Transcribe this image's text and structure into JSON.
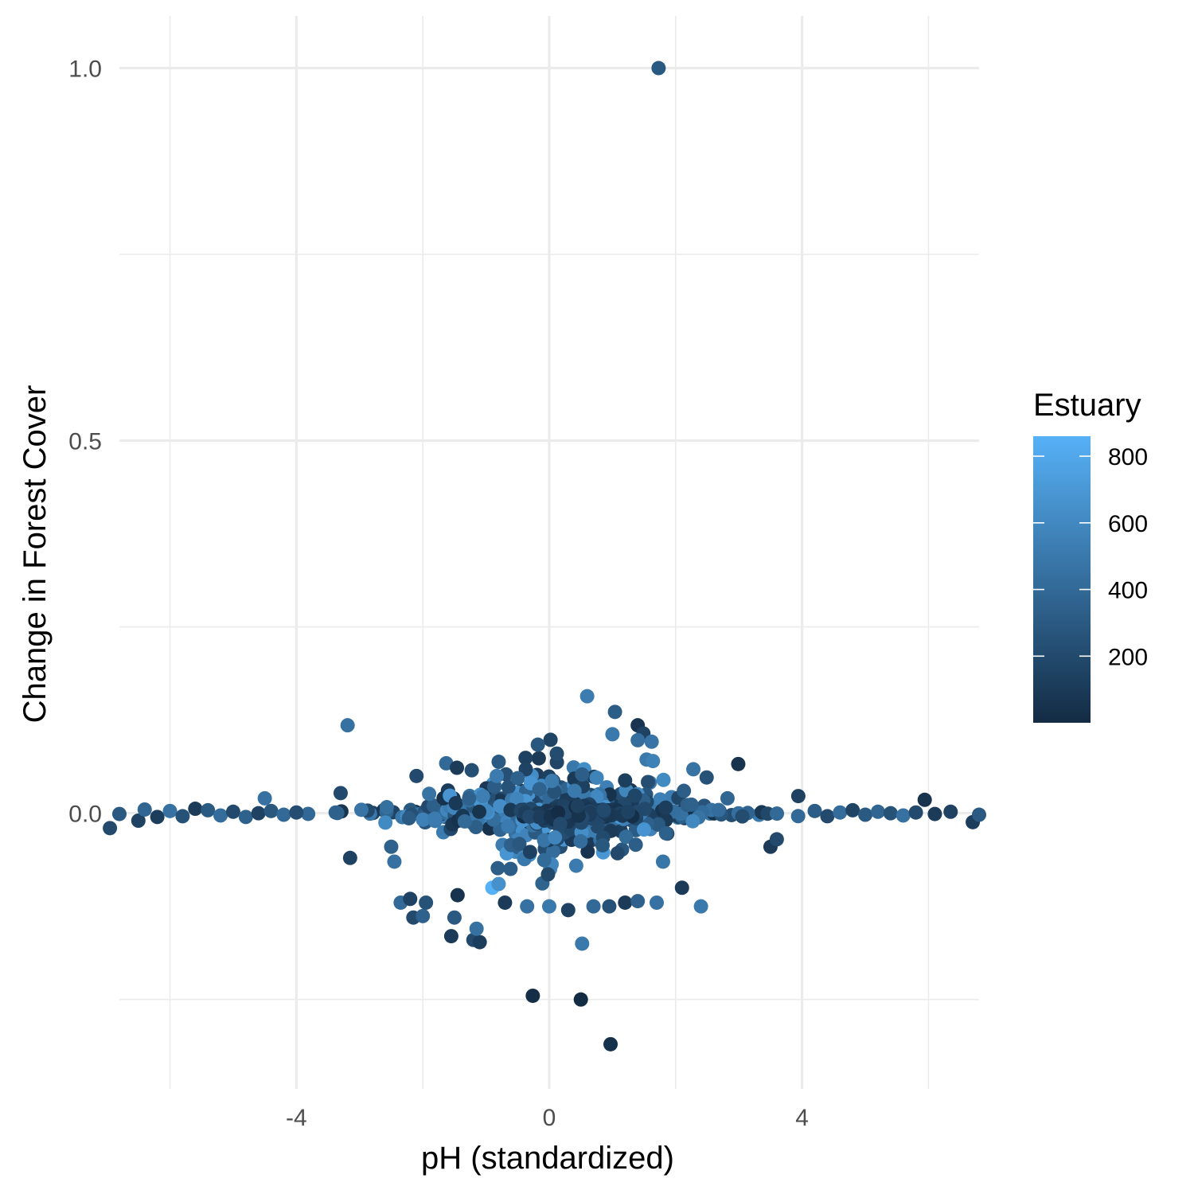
{
  "chart_data": {
    "type": "scatter",
    "xlabel": "pH (standardized)",
    "ylabel": "Change in Forest Cover",
    "xlim": [
      -6.8,
      6.8
    ],
    "ylim": [
      -0.37,
      1.07
    ],
    "x_ticks": [
      -4,
      0,
      4
    ],
    "x_tick_labels": [
      "-4",
      "0",
      "4"
    ],
    "y_ticks": [
      0.0,
      0.5,
      1.0
    ],
    "y_tick_labels": [
      "0.0",
      "0.5",
      "1.0"
    ],
    "grid": true,
    "legend": {
      "title": "Estuary",
      "type": "colorbar",
      "placement": "right",
      "min": 0,
      "max": 860,
      "ticks": [
        200,
        400,
        600,
        800
      ],
      "tick_labels": [
        "200",
        "400",
        "600",
        "800"
      ],
      "color_low": "#132B43",
      "color_high": "#56B1F7"
    },
    "points": [
      {
        "x": 1.73,
        "y": 1.0,
        "c": 300
      },
      {
        "x": -0.26,
        "y": -0.245,
        "c": 20
      },
      {
        "x": 0.97,
        "y": -0.31,
        "c": 40
      },
      {
        "x": -3.19,
        "y": 0.118,
        "c": 450
      },
      {
        "x": 0.6,
        "y": 0.157,
        "c": 520
      },
      {
        "x": 1.04,
        "y": 0.136,
        "c": 320
      },
      {
        "x": 1.4,
        "y": 0.118,
        "c": 60
      },
      {
        "x": 1.49,
        "y": 0.107,
        "c": 150
      },
      {
        "x": 1.0,
        "y": 0.106,
        "c": 500
      },
      {
        "x": 1.4,
        "y": 0.098,
        "c": 430
      },
      {
        "x": 1.62,
        "y": 0.096,
        "c": 470
      },
      {
        "x": -0.18,
        "y": 0.092,
        "c": 280
      },
      {
        "x": 0.12,
        "y": 0.08,
        "c": 210
      },
      {
        "x": 1.54,
        "y": 0.072,
        "c": 500
      },
      {
        "x": 1.64,
        "y": 0.07,
        "c": 550
      },
      {
        "x": 2.99,
        "y": 0.066,
        "c": 50
      },
      {
        "x": -1.63,
        "y": 0.067,
        "c": 400
      },
      {
        "x": -0.8,
        "y": 0.069,
        "c": 300
      },
      {
        "x": -1.46,
        "y": 0.061,
        "c": 100
      },
      {
        "x": -2.1,
        "y": 0.05,
        "c": 200
      },
      {
        "x": 0.52,
        "y": 0.052,
        "c": 330
      },
      {
        "x": 2.28,
        "y": 0.059,
        "c": 460
      },
      {
        "x": 2.49,
        "y": 0.048,
        "c": 250
      },
      {
        "x": -0.5,
        "y": 0.047,
        "c": 350
      },
      {
        "x": 1.2,
        "y": 0.044,
        "c": 130
      },
      {
        "x": 3.94,
        "y": 0.023,
        "c": 150
      },
      {
        "x": 5.94,
        "y": 0.018,
        "c": 50
      },
      {
        "x": -4.5,
        "y": 0.02,
        "c": 450
      },
      {
        "x": -3.3,
        "y": 0.027,
        "c": 200
      },
      {
        "x": 2.82,
        "y": 0.02,
        "c": 380
      },
      {
        "x": 0.4,
        "y": 0.03,
        "c": 500
      },
      {
        "x": -1.9,
        "y": 0.026,
        "c": 460
      },
      {
        "x": 2.13,
        "y": 0.03,
        "c": 330
      },
      {
        "x": -6.95,
        "y": -0.02,
        "c": 200
      },
      {
        "x": -6.8,
        "y": -0.001,
        "c": 300
      },
      {
        "x": -6.5,
        "y": -0.01,
        "c": 150
      },
      {
        "x": -6.2,
        "y": -0.005,
        "c": 120
      },
      {
        "x": -6.4,
        "y": 0.005,
        "c": 380
      },
      {
        "x": -6.0,
        "y": 0.003,
        "c": 450
      },
      {
        "x": -5.8,
        "y": -0.004,
        "c": 250
      },
      {
        "x": -5.6,
        "y": 0.006,
        "c": 100
      },
      {
        "x": -5.4,
        "y": 0.004,
        "c": 300
      },
      {
        "x": -5.2,
        "y": -0.003,
        "c": 420
      },
      {
        "x": -5.0,
        "y": 0.002,
        "c": 200
      },
      {
        "x": -4.8,
        "y": -0.005,
        "c": 350
      },
      {
        "x": -4.6,
        "y": 0.0,
        "c": 150
      },
      {
        "x": -4.4,
        "y": 0.003,
        "c": 280
      },
      {
        "x": -4.2,
        "y": -0.002,
        "c": 400
      },
      {
        "x": -4.0,
        "y": 0.001,
        "c": 220
      },
      {
        "x": 4.2,
        "y": 0.003,
        "c": 320
      },
      {
        "x": 4.4,
        "y": -0.004,
        "c": 200
      },
      {
        "x": 4.6,
        "y": 0.001,
        "c": 420
      },
      {
        "x": 4.8,
        "y": 0.004,
        "c": 160
      },
      {
        "x": 5.0,
        "y": -0.002,
        "c": 300
      },
      {
        "x": 5.2,
        "y": 0.002,
        "c": 380
      },
      {
        "x": 5.4,
        "y": 0.0,
        "c": 250
      },
      {
        "x": 5.6,
        "y": -0.003,
        "c": 450
      },
      {
        "x": 5.8,
        "y": 0.001,
        "c": 200
      },
      {
        "x": 6.1,
        "y": -0.001,
        "c": 100
      },
      {
        "x": 6.35,
        "y": 0.002,
        "c": 150
      },
      {
        "x": 6.7,
        "y": -0.012,
        "c": 120
      },
      {
        "x": 6.8,
        "y": -0.002,
        "c": 300
      },
      {
        "x": -1.55,
        "y": -0.165,
        "c": 100
      },
      {
        "x": -1.2,
        "y": -0.17,
        "c": 200
      },
      {
        "x": -1.1,
        "y": -0.173,
        "c": 120
      },
      {
        "x": -1.5,
        "y": -0.14,
        "c": 300
      },
      {
        "x": -1.15,
        "y": -0.155,
        "c": 450
      },
      {
        "x": 0.5,
        "y": -0.25,
        "c": 0
      },
      {
        "x": 0.52,
        "y": -0.175,
        "c": 500
      },
      {
        "x": -2.15,
        "y": -0.14,
        "c": 200
      },
      {
        "x": -2.0,
        "y": -0.138,
        "c": 350
      },
      {
        "x": -1.95,
        "y": -0.12,
        "c": 250
      },
      {
        "x": -2.35,
        "y": -0.12,
        "c": 400
      },
      {
        "x": -2.2,
        "y": -0.115,
        "c": 150
      },
      {
        "x": -1.45,
        "y": -0.11,
        "c": 50
      },
      {
        "x": -0.7,
        "y": -0.12,
        "c": 100
      },
      {
        "x": -0.9,
        "y": -0.1,
        "c": 860
      },
      {
        "x": -0.8,
        "y": -0.095,
        "c": 650
      },
      {
        "x": -0.35,
        "y": -0.125,
        "c": 450
      },
      {
        "x": 0.0,
        "y": -0.125,
        "c": 500
      },
      {
        "x": 0.3,
        "y": -0.13,
        "c": 150
      },
      {
        "x": 0.7,
        "y": -0.125,
        "c": 400
      },
      {
        "x": 0.95,
        "y": -0.125,
        "c": 250
      },
      {
        "x": 1.2,
        "y": -0.12,
        "c": 100
      },
      {
        "x": 1.4,
        "y": -0.118,
        "c": 350
      },
      {
        "x": 1.7,
        "y": -0.12,
        "c": 450
      },
      {
        "x": 2.1,
        "y": -0.1,
        "c": 100
      },
      {
        "x": 2.4,
        "y": -0.125,
        "c": 500
      },
      {
        "x": 3.5,
        "y": -0.045,
        "c": 100
      },
      {
        "x": 3.6,
        "y": -0.035,
        "c": 200
      },
      {
        "x": -3.15,
        "y": -0.06,
        "c": 150
      },
      {
        "x": -2.5,
        "y": -0.045,
        "c": 350
      },
      {
        "x": -2.45,
        "y": -0.065,
        "c": 450
      },
      {
        "x": 1.8,
        "y": -0.065,
        "c": 480
      }
    ],
    "band_clusters": [
      {
        "x_min": -4.4,
        "x_max": 4.4,
        "y_sd": 0.005,
        "n": 260,
        "c_min": 0,
        "c_max": 560
      },
      {
        "x_min": -3.2,
        "x_max": 3.2,
        "y_sd": 0.022,
        "n": 240,
        "c_min": 40,
        "c_max": 620
      },
      {
        "x_min": -1.9,
        "x_max": 2.2,
        "y_sd": 0.04,
        "n": 200,
        "c_min": 60,
        "c_max": 700
      },
      {
        "x_min": -0.8,
        "x_max": 1.6,
        "y_sd": 0.006,
        "n": 140,
        "c_min": 0,
        "c_max": 200
      }
    ]
  }
}
